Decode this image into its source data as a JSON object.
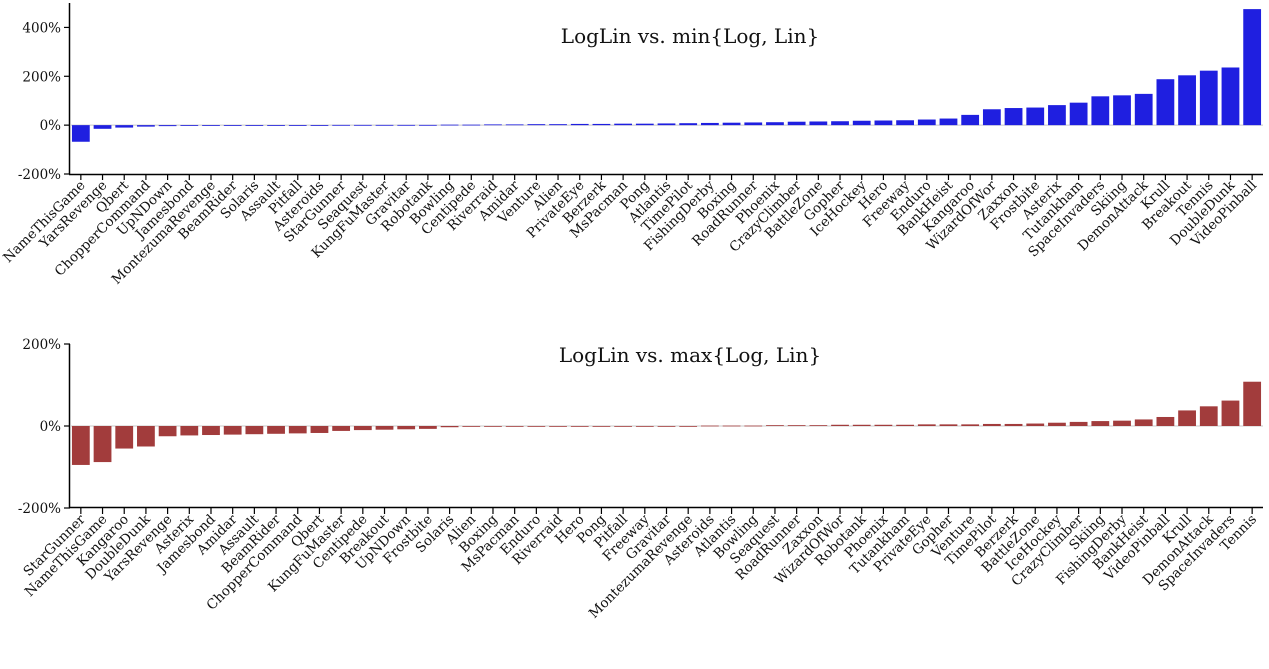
{
  "chart_data": [
    {
      "type": "bar",
      "title": "LogLin vs. min{Log, Lin}",
      "xlabel": "",
      "ylabel": "",
      "ylim": [
        -200,
        500
      ],
      "yticks": [
        -200,
        0,
        200,
        400
      ],
      "ytick_labels": [
        "-200%",
        "0%",
        "200%",
        "400%"
      ],
      "grid": false,
      "color": "#1f1fe0",
      "categories": [
        "NameThisGame",
        "YarsRevenge",
        "Qbert",
        "ChopperCommand",
        "UpNDown",
        "Jamesbond",
        "MontezumaRevenge",
        "BeamRider",
        "Solaris",
        "Assault",
        "Pitfall",
        "Asteroids",
        "StarGunner",
        "Seaquest",
        "KungFuMaster",
        "Gravitar",
        "Robotank",
        "Bowling",
        "Centipede",
        "Riverraid",
        "Amidar",
        "Venture",
        "Alien",
        "PrivateEye",
        "Berzerk",
        "MsPacman",
        "Pong",
        "Atlantis",
        "TimePilot",
        "FishingDerby",
        "Boxing",
        "RoadRunner",
        "Phoenix",
        "CrazyClimber",
        "BattleZone",
        "Gopher",
        "IceHockey",
        "Hero",
        "Freeway",
        "Enduro",
        "BankHeist",
        "Kangaroo",
        "WizardOfWor",
        "Zaxxon",
        "Frostbite",
        "Asterix",
        "Tutankham",
        "SpaceInvaders",
        "Skiing",
        "DemonAttack",
        "Krull",
        "Breakout",
        "Tennis",
        "DoubleDunk",
        "VideoPinball"
      ],
      "values": [
        -68,
        -15,
        -10,
        -6,
        -4,
        -2,
        -1,
        -1,
        0,
        0,
        0,
        0,
        1,
        1,
        1,
        1,
        1,
        2,
        2,
        3,
        3,
        4,
        4,
        5,
        5,
        6,
        6,
        7,
        8,
        9,
        10,
        11,
        12,
        14,
        15,
        16,
        18,
        19,
        20,
        23,
        27,
        42,
        65,
        70,
        72,
        82,
        92,
        118,
        122,
        128,
        188,
        204,
        223,
        236,
        475
      ]
    },
    {
      "type": "bar",
      "title": "LogLin vs. max{Log, Lin}",
      "xlabel": "",
      "ylabel": "",
      "ylim": [
        -200,
        200
      ],
      "yticks": [
        -200,
        0,
        200
      ],
      "ytick_labels": [
        "-200%",
        "0%",
        "200%"
      ],
      "grid": false,
      "color": "#a23c3c",
      "categories": [
        "StarGunner",
        "NameThisGame",
        "Kangaroo",
        "DoubleDunk",
        "YarsRevenge",
        "Asterix",
        "Jamesbond",
        "Amidar",
        "Assault",
        "BeamRider",
        "ChopperCommand",
        "Qbert",
        "KungFuMaster",
        "Centipede",
        "Breakout",
        "UpNDown",
        "Frostbite",
        "Solaris",
        "Alien",
        "Boxing",
        "MsPacman",
        "Enduro",
        "Riverraid",
        "Hero",
        "Pong",
        "Pitfall",
        "Freeway",
        "Gravitar",
        "MontezumaRevenge",
        "Asteroids",
        "Atlantis",
        "Bowling",
        "Seaquest",
        "RoadRunner",
        "Zaxxon",
        "WizardOfWor",
        "Robotank",
        "Phoenix",
        "Tutankham",
        "PrivateEye",
        "Gopher",
        "Venture",
        "TimePilot",
        "Berzerk",
        "BattleZone",
        "IceHockey",
        "CrazyClimber",
        "Skiing",
        "FishingDerby",
        "BankHeist",
        "VideoPinball",
        "Krull",
        "DemonAttack",
        "SpaceInvaders",
        "Tennis"
      ],
      "values": [
        -95,
        -88,
        -55,
        -50,
        -25,
        -23,
        -22,
        -21,
        -20,
        -19,
        -18,
        -17,
        -12,
        -10,
        -9,
        -8,
        -7,
        -3,
        -2,
        -1,
        0,
        0,
        0,
        0,
        0,
        0,
        0,
        0,
        0,
        1,
        1,
        1,
        2,
        2,
        2,
        3,
        3,
        3,
        3,
        4,
        4,
        4,
        5,
        5,
        6,
        8,
        10,
        12,
        13,
        16,
        22,
        38,
        48,
        62,
        108
      ]
    }
  ]
}
